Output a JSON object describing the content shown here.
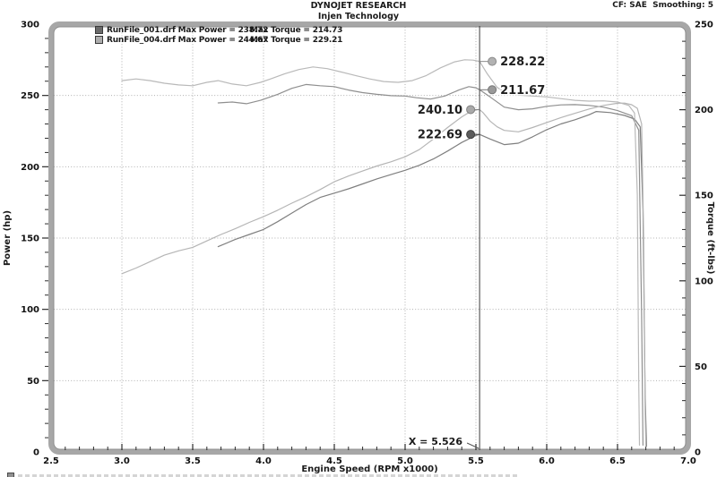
{
  "header": {
    "title": "DYNOJET RESEARCH",
    "subtitle": "Injen Technology",
    "cf_settings": "CF: SAE  Smoothing: 5"
  },
  "legend": {
    "rows": [
      {
        "swatch": "#6a6a6a",
        "left": "RunFile_001.drf Max Power = 238.72",
        "right": "Max Torque = 214.73"
      },
      {
        "swatch": "#adadad",
        "left": "RunFile_004.drf Max Power = 244.67",
        "right": "Max Torque = 229.21"
      }
    ]
  },
  "cursor": {
    "label": "X = 5.526",
    "rpm": 5.526,
    "line_color": "#3c3c3c",
    "readouts": [
      {
        "display": "228.22",
        "value": 228.22,
        "axis": "right",
        "side": "right",
        "dot_fill": "#b2b2b2",
        "dot_stroke": "#8a8a8a",
        "series": "torque-004"
      },
      {
        "display": "211.67",
        "value": 211.67,
        "axis": "right",
        "side": "right",
        "dot_fill": "#999999",
        "dot_stroke": "#757575",
        "series": "torque-001"
      },
      {
        "display": "240.10",
        "value": 240.1,
        "axis": "left",
        "side": "left",
        "dot_fill": "#a9a9a9",
        "dot_stroke": "#838383",
        "series": "power-004"
      },
      {
        "display": "222.69",
        "value": 222.69,
        "axis": "left",
        "side": "left",
        "dot_fill": "#5c5c5c",
        "dot_stroke": "#404040",
        "series": "power-001"
      }
    ]
  },
  "chart_data": {
    "type": "line",
    "x_axis": {
      "label": "Engine Speed (RPM x1000)",
      "min": 2.5,
      "max": 7.0,
      "ticks": [
        2.5,
        3.0,
        3.5,
        4.0,
        4.5,
        5.0,
        5.5,
        6.0,
        6.5,
        7.0
      ],
      "minor_step": 0.1
    },
    "y_left": {
      "label": "Power (hp)",
      "min": 0,
      "max": 300,
      "ticks": [
        0,
        50,
        100,
        150,
        200,
        250,
        300
      ],
      "minor_step": 10
    },
    "y_right": {
      "label": "Torque (ft-lbs)",
      "min": 0,
      "max": 250,
      "ticks": [
        0,
        50,
        100,
        150,
        200,
        250
      ],
      "minor_step": 10
    },
    "grid": {
      "style": "dotted",
      "color": "#b0b0b0"
    },
    "series": [
      {
        "id": "power-001",
        "name": "RunFile_001 Power",
        "axis": "left",
        "color": "#7f7f7f",
        "max": 238.72,
        "points": [
          [
            3.68,
            144
          ],
          [
            3.8,
            149
          ],
          [
            3.9,
            152.5
          ],
          [
            4.0,
            156
          ],
          [
            4.1,
            161.5
          ],
          [
            4.2,
            167.5
          ],
          [
            4.3,
            173.5
          ],
          [
            4.4,
            178.5
          ],
          [
            4.5,
            181.5
          ],
          [
            4.6,
            184.5
          ],
          [
            4.7,
            188
          ],
          [
            4.8,
            191.5
          ],
          [
            4.9,
            194.5
          ],
          [
            5.0,
            197.5
          ],
          [
            5.1,
            201
          ],
          [
            5.2,
            205.5
          ],
          [
            5.3,
            211
          ],
          [
            5.4,
            217
          ],
          [
            5.5,
            222
          ],
          [
            5.526,
            222.69
          ],
          [
            5.6,
            219.5
          ],
          [
            5.7,
            215.5
          ],
          [
            5.8,
            216.5
          ],
          [
            5.9,
            221
          ],
          [
            6.0,
            226
          ],
          [
            6.1,
            230
          ],
          [
            6.2,
            233
          ],
          [
            6.3,
            236.5
          ],
          [
            6.35,
            238.72
          ],
          [
            6.45,
            238
          ],
          [
            6.55,
            236
          ],
          [
            6.62,
            233.5
          ],
          [
            6.66,
            228
          ],
          [
            6.68,
            170
          ],
          [
            6.695,
            40
          ],
          [
            6.705,
            4
          ]
        ]
      },
      {
        "id": "torque-001",
        "name": "RunFile_001 Torque",
        "axis": "right",
        "color": "#8f8f8f",
        "max": 214.73,
        "points": [
          [
            3.68,
            204
          ],
          [
            3.78,
            204.5
          ],
          [
            3.88,
            203.5
          ],
          [
            3.98,
            205.5
          ],
          [
            4.1,
            209
          ],
          [
            4.2,
            212.5
          ],
          [
            4.3,
            214.73
          ],
          [
            4.4,
            214
          ],
          [
            4.5,
            213.5
          ],
          [
            4.6,
            211.5
          ],
          [
            4.7,
            210
          ],
          [
            4.8,
            209
          ],
          [
            4.9,
            208.2
          ],
          [
            5.0,
            208
          ],
          [
            5.08,
            207
          ],
          [
            5.18,
            206.2
          ],
          [
            5.28,
            208
          ],
          [
            5.38,
            211.5
          ],
          [
            5.45,
            213.5
          ],
          [
            5.5,
            212.8
          ],
          [
            5.526,
            211.67
          ],
          [
            5.6,
            207.5
          ],
          [
            5.7,
            201.5
          ],
          [
            5.8,
            200
          ],
          [
            5.9,
            200.5
          ],
          [
            6.0,
            202
          ],
          [
            6.1,
            202.8
          ],
          [
            6.2,
            203
          ],
          [
            6.3,
            202.5
          ],
          [
            6.4,
            201.5
          ],
          [
            6.5,
            199.5
          ],
          [
            6.6,
            196.5
          ],
          [
            6.65,
            188
          ],
          [
            6.67,
            80
          ],
          [
            6.68,
            4
          ]
        ]
      },
      {
        "id": "power-004",
        "name": "RunFile_004 Power",
        "axis": "left",
        "color": "#b5b5b5",
        "max": 244.67,
        "points": [
          [
            3.0,
            125
          ],
          [
            3.1,
            129
          ],
          [
            3.2,
            133.5
          ],
          [
            3.3,
            138
          ],
          [
            3.4,
            141
          ],
          [
            3.5,
            143.5
          ],
          [
            3.6,
            148
          ],
          [
            3.7,
            152.5
          ],
          [
            3.8,
            156.5
          ],
          [
            3.9,
            161
          ],
          [
            4.0,
            165
          ],
          [
            4.1,
            169.5
          ],
          [
            4.2,
            174.5
          ],
          [
            4.3,
            179
          ],
          [
            4.4,
            184
          ],
          [
            4.5,
            189.5
          ],
          [
            4.6,
            193.5
          ],
          [
            4.7,
            197
          ],
          [
            4.8,
            200.5
          ],
          [
            4.9,
            203.5
          ],
          [
            5.0,
            207
          ],
          [
            5.1,
            212
          ],
          [
            5.2,
            219.5
          ],
          [
            5.3,
            227.5
          ],
          [
            5.4,
            235
          ],
          [
            5.45,
            238
          ],
          [
            5.5,
            239.8
          ],
          [
            5.526,
            240.1
          ],
          [
            5.55,
            238
          ],
          [
            5.6,
            232
          ],
          [
            5.65,
            228
          ],
          [
            5.7,
            225.5
          ],
          [
            5.8,
            224.5
          ],
          [
            5.9,
            227.5
          ],
          [
            6.0,
            231
          ],
          [
            6.1,
            234.5
          ],
          [
            6.2,
            237.5
          ],
          [
            6.3,
            240.5
          ],
          [
            6.4,
            243
          ],
          [
            6.5,
            244.5
          ],
          [
            6.55,
            244.67
          ],
          [
            6.6,
            243.5
          ],
          [
            6.64,
            241
          ],
          [
            6.67,
            230
          ],
          [
            6.685,
            150
          ],
          [
            6.695,
            30
          ],
          [
            6.7,
            4
          ]
        ]
      },
      {
        "id": "torque-004",
        "name": "RunFile_004 Torque",
        "axis": "right",
        "color": "#b9b9b9",
        "max": 229.21,
        "points": [
          [
            3.0,
            217
          ],
          [
            3.1,
            218
          ],
          [
            3.2,
            217
          ],
          [
            3.3,
            215.5
          ],
          [
            3.4,
            214.5
          ],
          [
            3.5,
            214
          ],
          [
            3.6,
            216
          ],
          [
            3.68,
            217
          ],
          [
            3.78,
            215
          ],
          [
            3.88,
            214
          ],
          [
            3.98,
            216
          ],
          [
            4.05,
            218
          ],
          [
            4.15,
            221
          ],
          [
            4.25,
            223.5
          ],
          [
            4.35,
            225
          ],
          [
            4.45,
            224
          ],
          [
            4.55,
            222
          ],
          [
            4.65,
            220
          ],
          [
            4.75,
            218
          ],
          [
            4.85,
            216.5
          ],
          [
            4.95,
            216
          ],
          [
            5.05,
            217
          ],
          [
            5.15,
            220
          ],
          [
            5.25,
            224.5
          ],
          [
            5.35,
            228
          ],
          [
            5.42,
            229.21
          ],
          [
            5.48,
            229
          ],
          [
            5.526,
            228.22
          ],
          [
            5.58,
            221
          ],
          [
            5.65,
            213
          ],
          [
            5.72,
            209.5
          ],
          [
            5.8,
            208.5
          ],
          [
            5.9,
            208
          ],
          [
            6.0,
            207.5
          ],
          [
            6.1,
            206.5
          ],
          [
            6.2,
            205.5
          ],
          [
            6.3,
            205
          ],
          [
            6.4,
            205.2
          ],
          [
            6.5,
            204.5
          ],
          [
            6.58,
            202.5
          ],
          [
            6.62,
            198
          ],
          [
            6.64,
            150
          ],
          [
            6.65,
            40
          ],
          [
            6.655,
            4
          ]
        ]
      }
    ]
  }
}
